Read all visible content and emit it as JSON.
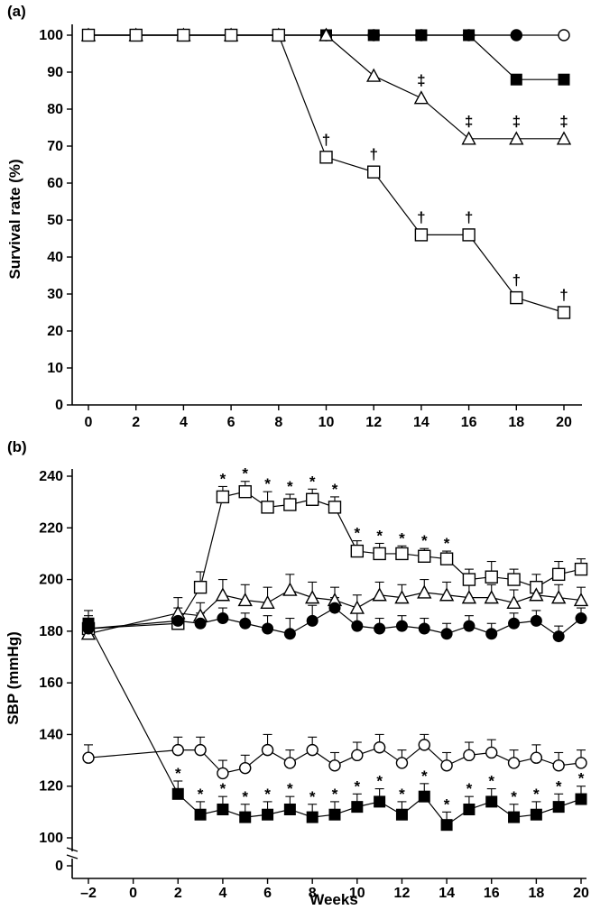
{
  "chart_data": [
    {
      "type": "line",
      "panel_label": "(a)",
      "xlabel": "",
      "ylabel": "Survival rate (%)",
      "xlim": [
        0,
        20
      ],
      "ylim": [
        0,
        100
      ],
      "x_ticks": [
        0,
        2,
        4,
        6,
        8,
        10,
        12,
        14,
        16,
        18,
        20
      ],
      "y_ticks": [
        0,
        10,
        20,
        30,
        40,
        50,
        60,
        70,
        80,
        90,
        100
      ],
      "grid": false,
      "legend": "none",
      "series": [
        {
          "marker": "open-circle",
          "x": [
            0,
            2,
            4,
            6,
            8,
            10,
            12,
            14,
            16,
            18,
            20
          ],
          "y": [
            100,
            100,
            100,
            100,
            100,
            100,
            100,
            100,
            100,
            100,
            100
          ]
        },
        {
          "marker": "filled-circle",
          "x": [
            0,
            2,
            4,
            6,
            8,
            10,
            12,
            14,
            16,
            18
          ],
          "y": [
            100,
            100,
            100,
            100,
            100,
            100,
            100,
            100,
            100,
            100
          ]
        },
        {
          "marker": "filled-square",
          "x": [
            0,
            2,
            4,
            6,
            8,
            10,
            12,
            14,
            16,
            18,
            20
          ],
          "y": [
            100,
            100,
            100,
            100,
            100,
            100,
            100,
            100,
            100,
            88,
            88
          ]
        },
        {
          "marker": "open-triangle",
          "x": [
            0,
            2,
            4,
            6,
            8,
            10,
            12,
            14,
            16,
            18,
            20
          ],
          "y": [
            100,
            100,
            100,
            100,
            100,
            100,
            89,
            83,
            72,
            72,
            72
          ],
          "annotations": [
            {
              "x": 14,
              "text": "‡"
            },
            {
              "x": 16,
              "text": "‡"
            },
            {
              "x": 18,
              "text": "‡"
            },
            {
              "x": 20,
              "text": "‡"
            }
          ]
        },
        {
          "marker": "open-square",
          "x": [
            0,
            2,
            4,
            6,
            8,
            10,
            12,
            14,
            16,
            18,
            20
          ],
          "y": [
            100,
            100,
            100,
            100,
            100,
            67,
            63,
            46,
            46,
            29,
            25
          ],
          "annotations": [
            {
              "x": 10,
              "text": "†"
            },
            {
              "x": 12,
              "text": "†"
            },
            {
              "x": 14,
              "text": "†"
            },
            {
              "x": 16,
              "text": "†"
            },
            {
              "x": 18,
              "text": "†"
            },
            {
              "x": 20,
              "text": "†"
            }
          ]
        }
      ]
    },
    {
      "type": "line",
      "panel_label": "(b)",
      "xlabel": "Weeks",
      "ylabel": "SBP (mmHg)",
      "xlim": [
        -2,
        20
      ],
      "ylim": [
        0,
        240
      ],
      "axis_break": [
        0,
        100
      ],
      "x_ticks": [
        -2,
        0,
        2,
        4,
        6,
        8,
        10,
        12,
        14,
        16,
        18,
        20
      ],
      "x_tick_labels": [
        "–2",
        "0",
        "2",
        "4",
        "6",
        "8",
        "10",
        "12",
        "14",
        "16",
        "18",
        "20"
      ],
      "y_ticks": [
        0,
        100,
        120,
        140,
        160,
        180,
        200,
        220,
        240
      ],
      "grid": false,
      "legend": "none",
      "annotation_text": "*",
      "series": [
        {
          "marker": "open-square",
          "x": [
            -2,
            2,
            3,
            4,
            5,
            6,
            7,
            8,
            9,
            10,
            11,
            12,
            13,
            14,
            15,
            16,
            17,
            18,
            19,
            20
          ],
          "y": [
            181,
            183,
            197,
            232,
            234,
            228,
            229,
            231,
            228,
            211,
            210,
            210,
            209,
            208,
            200,
            201,
            200,
            197,
            202,
            204
          ],
          "err": [
            3,
            3,
            6,
            4,
            4,
            6,
            4,
            4,
            4,
            4,
            4,
            3,
            3,
            3,
            4,
            6,
            4,
            5,
            5,
            4
          ],
          "starred": [
            4,
            5,
            6,
            7,
            8,
            9,
            10,
            11,
            12,
            13,
            14
          ]
        },
        {
          "marker": "open-triangle",
          "x": [
            -2,
            2,
            3,
            4,
            5,
            6,
            7,
            8,
            9,
            10,
            11,
            12,
            13,
            14,
            15,
            16,
            17,
            18,
            19,
            20
          ],
          "y": [
            179,
            187,
            186,
            194,
            192,
            191,
            196,
            193,
            192,
            189,
            194,
            193,
            195,
            194,
            193,
            193,
            191,
            194,
            193,
            192
          ],
          "err": [
            3,
            6,
            5,
            6,
            6,
            6,
            6,
            6,
            5,
            5,
            5,
            5,
            5,
            5,
            5,
            5,
            5,
            5,
            5,
            5
          ],
          "starred": []
        },
        {
          "marker": "filled-circle",
          "x": [
            -2,
            2,
            3,
            4,
            5,
            6,
            7,
            8,
            9,
            10,
            11,
            12,
            13,
            14,
            15,
            16,
            17,
            18,
            19,
            20
          ],
          "y": [
            181,
            184,
            183,
            185,
            183,
            181,
            179,
            184,
            189,
            182,
            181,
            182,
            181,
            179,
            182,
            179,
            183,
            184,
            178,
            185
          ],
          "err": [
            5,
            5,
            4,
            4,
            4,
            5,
            6,
            6,
            4,
            5,
            4,
            4,
            4,
            4,
            4,
            4,
            4,
            4,
            4,
            4
          ],
          "starred": []
        },
        {
          "marker": "open-circle",
          "x": [
            -2,
            2,
            3,
            4,
            5,
            6,
            7,
            8,
            9,
            10,
            11,
            12,
            13,
            14,
            15,
            16,
            17,
            18,
            19,
            20
          ],
          "y": [
            131,
            134,
            134,
            125,
            127,
            134,
            129,
            134,
            128,
            132,
            135,
            129,
            136,
            128,
            132,
            133,
            129,
            131,
            128,
            129
          ],
          "err": [
            5,
            5,
            5,
            5,
            5,
            6,
            5,
            5,
            5,
            5,
            5,
            5,
            4,
            5,
            5,
            5,
            5,
            5,
            5,
            5
          ],
          "starred": []
        },
        {
          "marker": "filled-square",
          "x": [
            -2,
            2,
            3,
            4,
            5,
            6,
            7,
            8,
            9,
            10,
            11,
            12,
            13,
            14,
            15,
            16,
            17,
            18,
            19,
            20
          ],
          "y": [
            183,
            117,
            109,
            111,
            108,
            109,
            111,
            108,
            109,
            112,
            114,
            109,
            116,
            105,
            111,
            114,
            108,
            109,
            112,
            115
          ],
          "err": [
            5,
            5,
            5,
            5,
            5,
            5,
            5,
            5,
            5,
            5,
            5,
            5,
            5,
            5,
            5,
            5,
            5,
            5,
            5,
            5
          ],
          "starred": [
            2,
            3,
            4,
            5,
            6,
            7,
            8,
            9,
            10,
            11,
            12,
            13,
            14,
            15,
            16,
            17,
            18,
            19,
            20
          ]
        }
      ]
    }
  ]
}
